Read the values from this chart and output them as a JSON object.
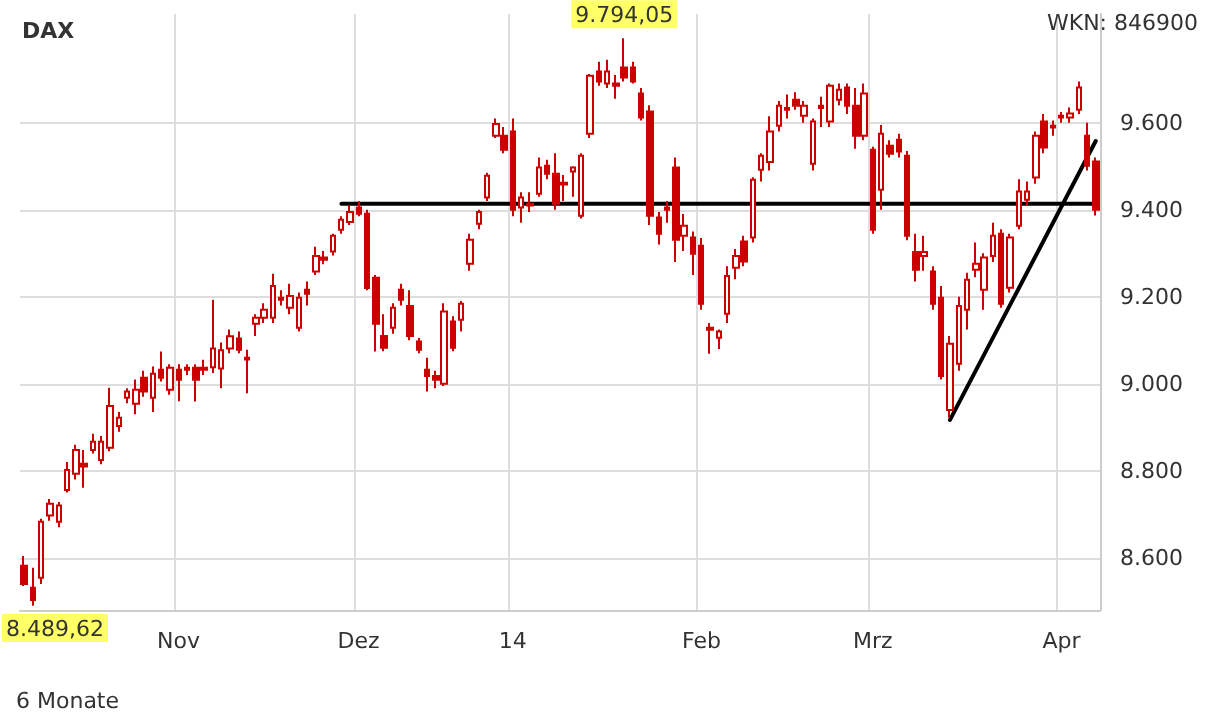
{
  "chart_data": {
    "type": "candlestick",
    "title": "DAX",
    "annotations": [
      "WKN: 846900",
      "6 Monate",
      {
        "text": "9.794,05",
        "y": 9794.05
      },
      "8.489,62"
    ],
    "categories": [
      null,
      null,
      null,
      null,
      null,
      null,
      null,
      null,
      null,
      null,
      null,
      null,
      null,
      null,
      null,
      null,
      null,
      null,
      "Nov",
      null,
      null,
      null,
      null,
      null,
      null,
      null,
      null,
      null,
      null,
      null,
      null,
      null,
      null,
      null,
      null,
      null,
      null,
      null,
      null,
      "Dez",
      null,
      null,
      null,
      null,
      null,
      null,
      null,
      null,
      null,
      null,
      null,
      null,
      null,
      null,
      null,
      null,
      null,
      "14",
      null,
      null,
      null,
      null,
      null,
      null,
      null,
      null,
      null,
      null,
      null,
      null,
      null,
      null,
      null,
      null,
      null,
      null,
      null,
      null,
      null,
      "Feb",
      null,
      null,
      null,
      null,
      null,
      null,
      null,
      null,
      null,
      null,
      null,
      null,
      null,
      null,
      null,
      null,
      null,
      null,
      null,
      "Mrz",
      null,
      null,
      null,
      null,
      null,
      null,
      null,
      null,
      null,
      null,
      null,
      null,
      null,
      null,
      null,
      null,
      null,
      null,
      null,
      null,
      null,
      "Apr",
      null,
      null,
      null,
      null
    ],
    "series": [
      {
        "color": "#cc0000",
        "ohlc": [
          [
            8582,
            8604,
            8535,
            8540
          ],
          [
            8531,
            8577,
            8489.62,
            8503
          ],
          [
            8554,
            8690,
            8540,
            8683
          ],
          [
            8697,
            8735,
            8685,
            8724
          ],
          [
            8683,
            8728,
            8670,
            8720
          ],
          [
            8756,
            8820,
            8750,
            8802
          ],
          [
            8793,
            8860,
            8780,
            8848
          ],
          [
            8816,
            8848,
            8761,
            8810
          ],
          [
            8848,
            8885,
            8840,
            8867
          ],
          [
            8825,
            8880,
            8815,
            8867
          ],
          [
            8853,
            8991,
            8845,
            8949
          ],
          [
            8903,
            8935,
            8890,
            8922
          ],
          [
            8968,
            8990,
            8955,
            8982
          ],
          [
            8954,
            9010,
            8930,
            8986
          ],
          [
            9014,
            9030,
            8970,
            8982
          ],
          [
            8968,
            9040,
            8935,
            9023
          ],
          [
            9032,
            9074,
            9005,
            9014
          ],
          [
            8986,
            9045,
            8975,
            9037
          ],
          [
            9032,
            9045,
            8960,
            9009
          ],
          [
            9032,
            9045,
            9020,
            9037
          ],
          [
            9037,
            9045,
            8959,
            9009
          ],
          [
            9032,
            9055,
            9020,
            9037
          ],
          [
            9038,
            9193,
            9025,
            9081
          ],
          [
            9035,
            9095,
            8990,
            9077
          ],
          [
            9081,
            9125,
            9070,
            9109
          ],
          [
            9104,
            9120,
            9070,
            9078
          ],
          [
            9060,
            9078,
            8978,
            9056
          ],
          [
            9138,
            9160,
            9110,
            9152
          ],
          [
            9152,
            9185,
            9140,
            9170
          ],
          [
            9152,
            9253,
            9140,
            9225
          ],
          [
            9198,
            9215,
            9180,
            9193
          ],
          [
            9175,
            9230,
            9160,
            9202
          ],
          [
            9129,
            9210,
            9120,
            9198
          ],
          [
            9216,
            9235,
            9180,
            9207
          ],
          [
            9258,
            9315,
            9250,
            9294
          ],
          [
            9290,
            9305,
            9275,
            9285
          ],
          [
            9304,
            9345,
            9295,
            9340
          ],
          [
            9354,
            9385,
            9345,
            9377
          ],
          [
            9372,
            9410,
            9365,
            9395
          ],
          [
            9405,
            9420,
            9385,
            9391
          ],
          [
            9391,
            9400,
            9215,
            9220
          ],
          [
            9244,
            9250,
            9074,
            9138
          ],
          [
            9110,
            9160,
            9075,
            9083
          ],
          [
            9129,
            9185,
            9115,
            9175
          ],
          [
            9216,
            9230,
            9180,
            9193
          ],
          [
            9179,
            9215,
            9100,
            9110
          ],
          [
            9097,
            9105,
            9070,
            9078
          ],
          [
            9032,
            9060,
            8982,
            9018
          ],
          [
            9018,
            9030,
            8990,
            9009
          ],
          [
            9000,
            9185,
            8995,
            9166
          ],
          [
            9143,
            9155,
            9075,
            9083
          ],
          [
            9147,
            9190,
            9120,
            9184
          ],
          [
            9276,
            9345,
            9260,
            9331
          ],
          [
            9368,
            9400,
            9355,
            9395
          ],
          [
            9428,
            9485,
            9420,
            9478
          ],
          [
            9570,
            9610,
            9565,
            9597
          ],
          [
            9570,
            9590,
            9530,
            9538
          ],
          [
            9580,
            9610,
            9385,
            9400
          ],
          [
            9405,
            9440,
            9370,
            9428
          ],
          [
            9414,
            9440,
            9395,
            9410
          ],
          [
            9437,
            9520,
            9430,
            9497
          ],
          [
            9501,
            9515,
            9470,
            9483
          ],
          [
            9483,
            9530,
            9400,
            9414
          ],
          [
            9462,
            9480,
            9420,
            9458
          ],
          [
            9488,
            9500,
            9430,
            9497
          ],
          [
            9386,
            9530,
            9380,
            9524
          ],
          [
            9575,
            9712,
            9565,
            9708
          ],
          [
            9718,
            9740,
            9685,
            9695
          ],
          [
            9690,
            9745,
            9680,
            9718
          ],
          [
            9690,
            9710,
            9655,
            9685
          ],
          [
            9727,
            9794.05,
            9695,
            9704
          ],
          [
            9727,
            9740,
            9690,
            9695
          ],
          [
            9667,
            9680,
            9605,
            9612
          ],
          [
            9626,
            9640,
            9365,
            9386
          ],
          [
            9382,
            9395,
            9320,
            9345
          ],
          [
            9405,
            9420,
            9370,
            9400
          ],
          [
            9497,
            9520,
            9280,
            9331
          ],
          [
            9340,
            9390,
            9305,
            9363
          ],
          [
            9336,
            9350,
            9250,
            9299
          ],
          [
            9317,
            9335,
            9170,
            9184
          ],
          [
            9129,
            9140,
            9069,
            9124
          ],
          [
            9106,
            9125,
            9080,
            9120
          ],
          [
            9161,
            9270,
            9140,
            9248
          ],
          [
            9267,
            9310,
            9240,
            9294
          ],
          [
            9327,
            9340,
            9270,
            9281
          ],
          [
            9336,
            9475,
            9325,
            9469
          ],
          [
            9492,
            9530,
            9465,
            9524
          ],
          [
            9510,
            9615,
            9490,
            9580
          ],
          [
            9593,
            9650,
            9580,
            9639
          ],
          [
            9634,
            9665,
            9610,
            9630
          ],
          [
            9653,
            9670,
            9630,
            9639
          ],
          [
            9616,
            9650,
            9600,
            9639
          ],
          [
            9506,
            9610,
            9490,
            9603
          ],
          [
            9639,
            9660,
            9590,
            9634
          ],
          [
            9603,
            9690,
            9590,
            9685
          ],
          [
            9653,
            9690,
            9640,
            9676
          ],
          [
            9681,
            9690,
            9620,
            9639
          ],
          [
            9639,
            9680,
            9540,
            9570
          ],
          [
            9570,
            9690,
            9560,
            9667
          ],
          [
            9538,
            9545,
            9345,
            9354
          ],
          [
            9446,
            9595,
            9400,
            9575
          ],
          [
            9547,
            9560,
            9520,
            9529
          ],
          [
            9561,
            9575,
            9520,
            9534
          ],
          [
            9524,
            9535,
            9330,
            9340
          ],
          [
            9303,
            9345,
            9235,
            9262
          ],
          [
            9294,
            9340,
            9260,
            9303
          ],
          [
            9258,
            9270,
            9170,
            9184
          ],
          [
            9198,
            9225,
            9010,
            9018
          ],
          [
            8940,
            9110,
            8922,
            9092
          ],
          [
            9046,
            9200,
            9030,
            9179
          ],
          [
            9170,
            9255,
            9125,
            9239
          ],
          [
            9262,
            9325,
            9245,
            9276
          ],
          [
            9216,
            9300,
            9170,
            9290
          ],
          [
            9294,
            9370,
            9280,
            9340
          ],
          [
            9345,
            9355,
            9175,
            9184
          ],
          [
            9221,
            9345,
            9210,
            9336
          ],
          [
            9363,
            9470,
            9355,
            9442
          ],
          [
            9423,
            9465,
            9410,
            9442
          ],
          [
            9474,
            9580,
            9460,
            9570
          ],
          [
            9603,
            9620,
            9530,
            9543
          ],
          [
            9593,
            9605,
            9570,
            9589
          ],
          [
            9616,
            9625,
            9600,
            9612
          ],
          [
            9612,
            9635,
            9600,
            9621
          ],
          [
            9630,
            9695,
            9620,
            9681
          ],
          [
            9570,
            9600,
            9490,
            9501
          ],
          [
            9511,
            9520,
            9387,
            9400
          ]
        ]
      },
      {
        "type": "line",
        "color": "#000000",
        "values": [
          null,
          null,
          null,
          null,
          null,
          null,
          null,
          null,
          null,
          null,
          null,
          null,
          null,
          null,
          null,
          null,
          null,
          null,
          null,
          null,
          null,
          null,
          null,
          null,
          null,
          null,
          null,
          null,
          null,
          null,
          null,
          null,
          null,
          null,
          null,
          null,
          null,
          9414,
          null,
          null,
          null,
          null,
          null,
          null,
          null,
          null,
          null,
          null,
          null,
          null,
          null,
          null,
          null,
          null,
          null,
          null,
          null,
          null,
          null,
          null,
          null,
          null,
          null,
          null,
          null,
          null,
          null,
          null,
          null,
          null,
          null,
          null,
          null,
          null,
          null,
          null,
          null,
          null,
          null,
          null,
          null,
          null,
          null,
          null,
          null,
          null,
          null,
          null,
          null,
          null,
          null,
          null,
          null,
          null,
          null,
          null,
          null,
          null,
          null,
          null,
          null,
          null,
          null,
          null,
          null,
          null,
          null,
          null,
          null,
          null,
          null,
          null,
          null,
          null,
          null,
          null,
          null,
          null,
          null,
          null,
          null,
          null,
          null,
          null,
          null,
          9414
        ]
      },
      {
        "type": "line",
        "color": "#000000",
        "values": [
          null,
          null,
          null,
          null,
          null,
          null,
          null,
          null,
          null,
          null,
          null,
          null,
          null,
          null,
          null,
          null,
          null,
          null,
          null,
          null,
          null,
          null,
          null,
          null,
          null,
          null,
          null,
          null,
          null,
          null,
          null,
          null,
          null,
          null,
          null,
          null,
          null,
          null,
          null,
          null,
          null,
          null,
          null,
          null,
          null,
          null,
          null,
          null,
          null,
          null,
          null,
          null,
          null,
          null,
          null,
          null,
          null,
          null,
          null,
          null,
          null,
          null,
          null,
          null,
          null,
          null,
          null,
          null,
          null,
          null,
          null,
          null,
          null,
          null,
          null,
          null,
          null,
          null,
          null,
          null,
          null,
          null,
          null,
          null,
          null,
          null,
          null,
          null,
          null,
          null,
          null,
          null,
          null,
          null,
          null,
          null,
          null,
          null,
          null,
          null,
          null,
          null,
          null,
          null,
          null,
          null,
          null,
          null,
          8917,
          null,
          null,
          null,
          null,
          null,
          null,
          null,
          null,
          null,
          null,
          null,
          null,
          null,
          null,
          null,
          null,
          9558
        ]
      }
    ],
    "ylim": [
      8480,
      9850
    ],
    "yticks": [
      {
        "value": 8600,
        "label": "8.600"
      },
      {
        "value": 8800,
        "label": "8.800"
      },
      {
        "value": 9000,
        "label": "9.000"
      },
      {
        "value": 9200,
        "label": "9.200"
      },
      {
        "value": 9400,
        "label": "9.400"
      },
      {
        "value": 9600,
        "label": "9.600"
      }
    ],
    "grid": true,
    "marker": "none",
    "line_style": "solid"
  }
}
